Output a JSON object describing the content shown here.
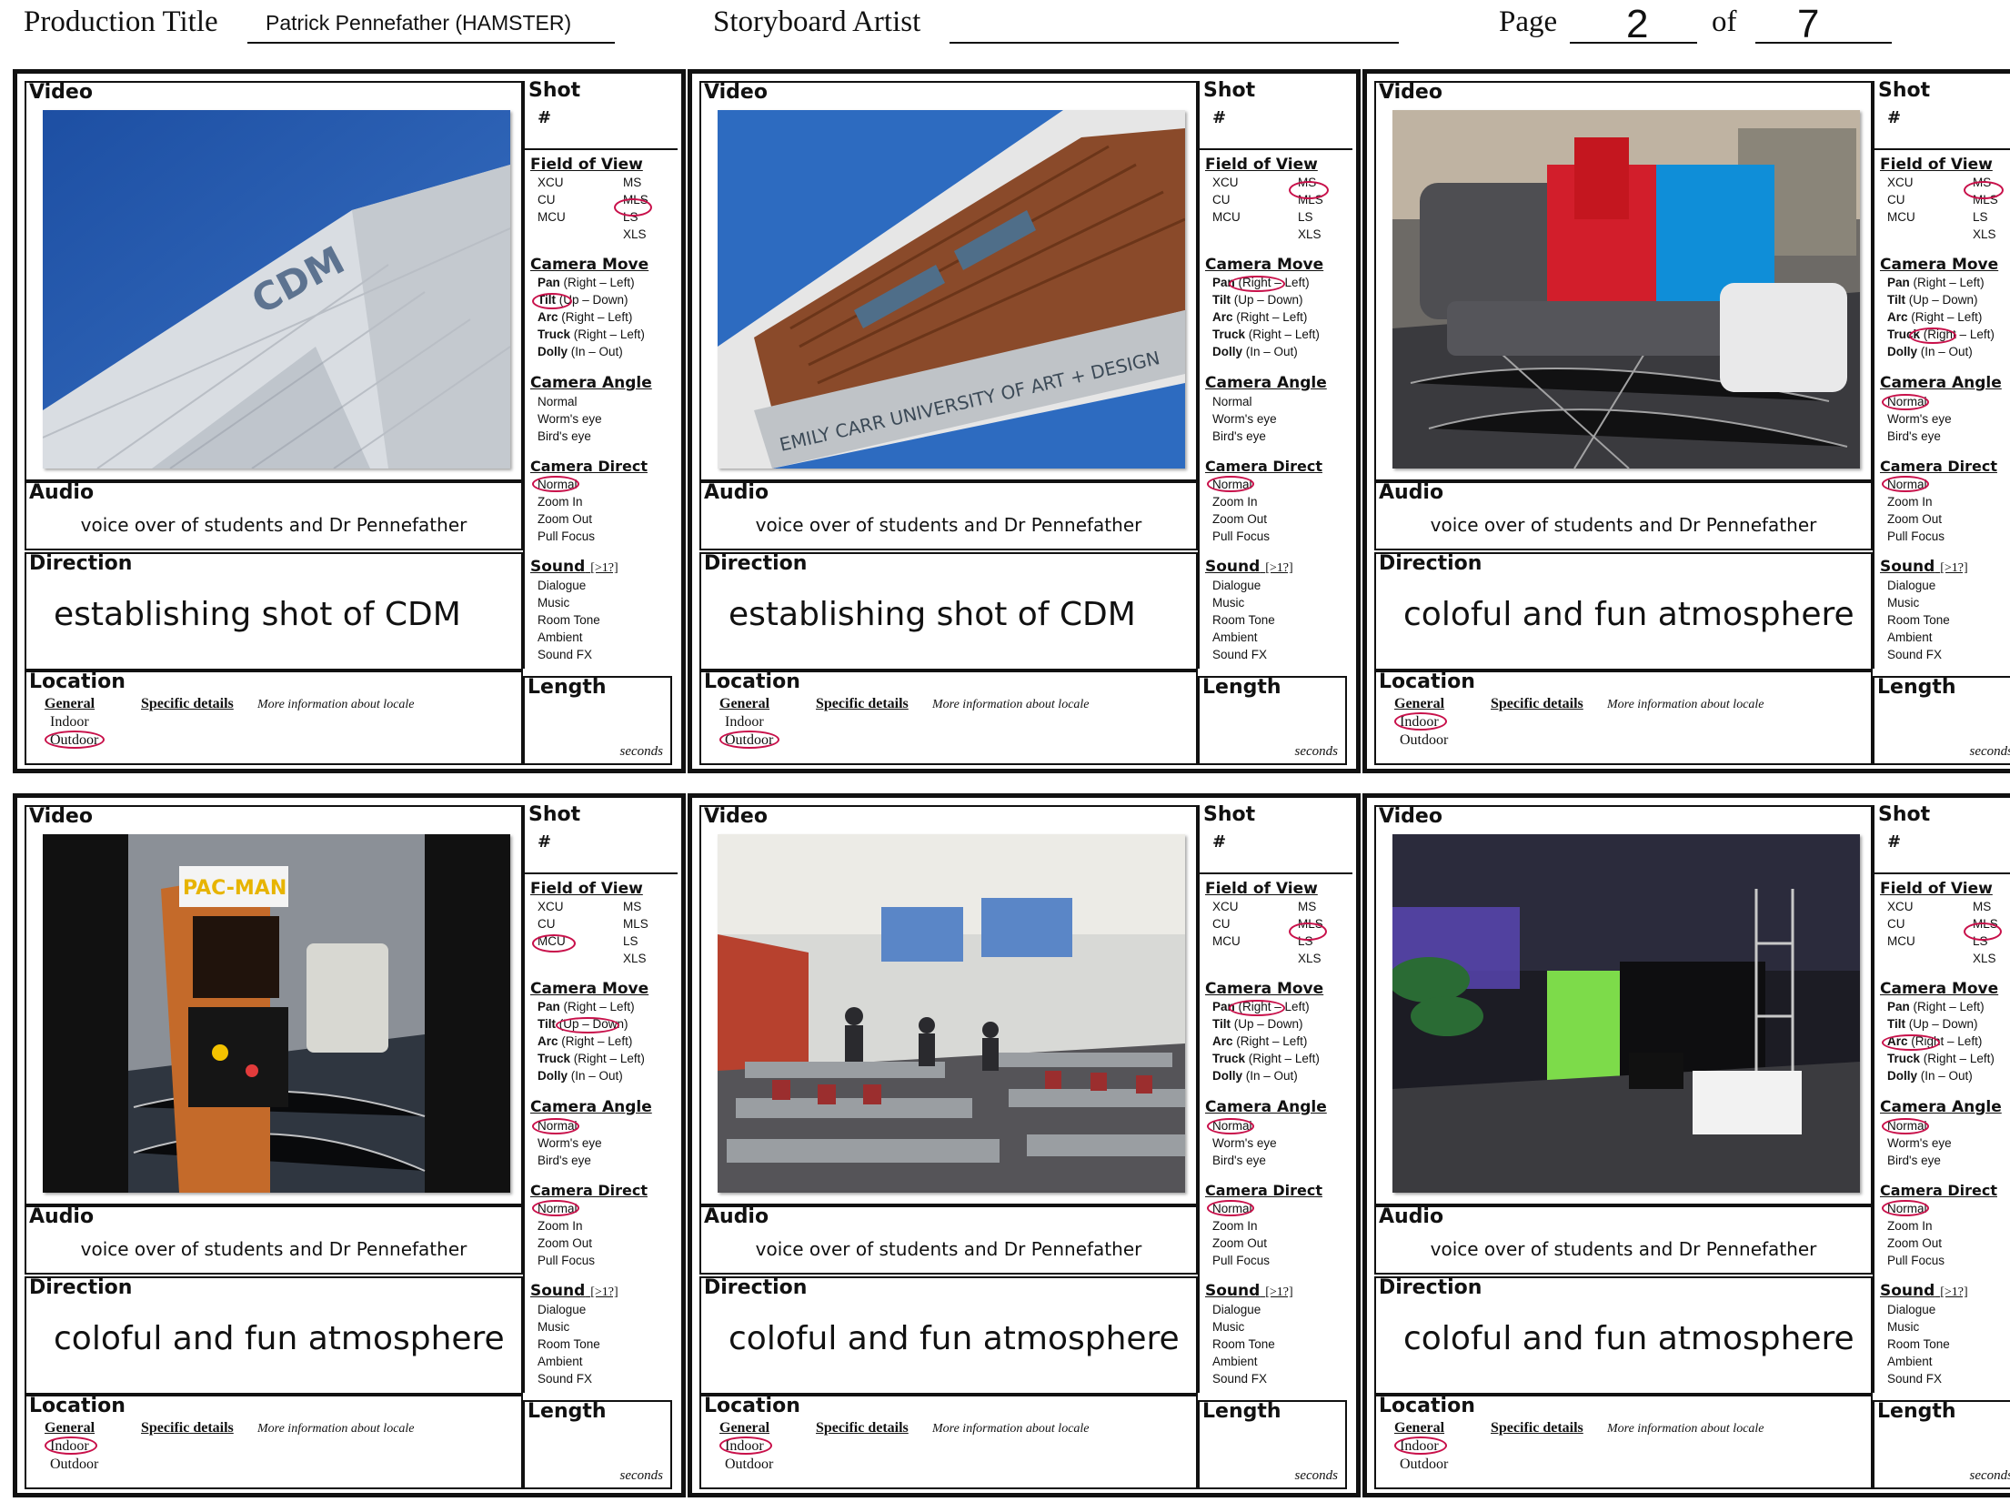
{
  "header": {
    "production_title_label": "Production Title",
    "production_title_value": "Patrick Pennefather (HAMSTER)",
    "storyboard_artist_label": "Storyboard Artist",
    "storyboard_artist_value": "",
    "page_label": "Page",
    "page_number": "2",
    "of_label": "of",
    "page_total": "7"
  },
  "labels": {
    "video": "Video",
    "shot": "Shot",
    "shot_number": "#",
    "audio": "Audio",
    "direction": "Direction",
    "location": "Location",
    "length": "Length",
    "seconds": "seconds",
    "general": "General",
    "indoor": "Indoor",
    "outdoor": "Outdoor",
    "specific_details": "Specific details",
    "more_info": "More information about locale",
    "field_of_view": "Field of View",
    "fov_xcu": "XCU",
    "fov_cu": "CU",
    "fov_mcu": "MCU",
    "fov_ms": "MS",
    "fov_mls": "MLS",
    "fov_ls": "LS",
    "fov_xls": "XLS",
    "camera_move": "Camera Move",
    "move_pan": "Pan",
    "move_pan_dir": "(Right – Left)",
    "move_tilt": "Tilt",
    "move_tilt_dir": "(Up – Down)",
    "move_arc": "Arc",
    "move_arc_dir": "(Right – Left)",
    "move_truck": "Truck",
    "move_truck_dir": "(Right – Left)",
    "move_dolly": "Dolly",
    "move_dolly_dir": "(In – Out)",
    "camera_angle": "Camera Angle",
    "angle_normal": "Normal",
    "angle_worms": "Worm's eye",
    "angle_birds": "Bird's eye",
    "camera_direct": "Camera Direct",
    "direct_normal": "Normal",
    "direct_zoom_in": "Zoom In",
    "direct_zoom_out": "Zoom Out",
    "direct_pull_focus": "Pull Focus",
    "sound": "Sound",
    "sound_note": "[>1?]",
    "sound_dialogue": "Dialogue",
    "sound_music": "Music",
    "sound_room_tone": "Room Tone",
    "sound_ambient": "Ambient",
    "sound_fx": "Sound FX"
  },
  "panels": [
    {
      "image": "CDM building corner with logo against blue sky",
      "audio": "voice over of students and Dr Pennefather",
      "direction": "establishing shot of CDM",
      "selected": {
        "fov": "MLS",
        "move": "Tilt (Up",
        "angle": "",
        "direct": "Normal",
        "location": "Outdoor"
      }
    },
    {
      "image": "Emily Carr University of Art + Design building facade",
      "building_sign": "EMILY CARR UNIVERSITY OF ART + DESIGN",
      "audio": "voice over of students and Dr Pennefather",
      "direction": "establishing shot of CDM",
      "selected": {
        "fov": "MS",
        "move": "(Right –",
        "angle": "",
        "direct": "Normal",
        "location": "Outdoor"
      }
    },
    {
      "image": "Red and blue modular lounge seating in sunlight",
      "audio": "voice over of students and Dr Pennefather",
      "direction": "coloful and fun atmosphere",
      "selected": {
        "fov": "MS",
        "move": "(Right",
        "angle": "Normal",
        "direct": "Normal",
        "location": "Indoor"
      }
    },
    {
      "image": "Pac-Man arcade cabinet",
      "cabinet_logo": "PAC-MAN",
      "audio": "voice over of students and Dr Pennefather",
      "direction": "coloful and fun atmosphere",
      "selected": {
        "fov": "MCU",
        "move": "(Up – Down)",
        "angle": "Normal",
        "direct": "Normal",
        "location": "Indoor"
      }
    },
    {
      "image": "Classroom with projection screens and students",
      "audio": "voice over of students and Dr Pennefather",
      "direction": "coloful and fun atmosphere",
      "selected": {
        "fov": "MLS",
        "move": "(Right",
        "angle": "Normal",
        "direct": "Normal",
        "location": "Indoor"
      }
    },
    {
      "image": "Studio space with green screen and stage lighting",
      "audio": "voice over of students and Dr Pennefather",
      "direction": "coloful and fun atmosphere",
      "selected": {
        "fov": "MLS",
        "move": "Arc (Right",
        "angle": "Normal",
        "direct": "Normal",
        "location": "Indoor"
      }
    }
  ]
}
